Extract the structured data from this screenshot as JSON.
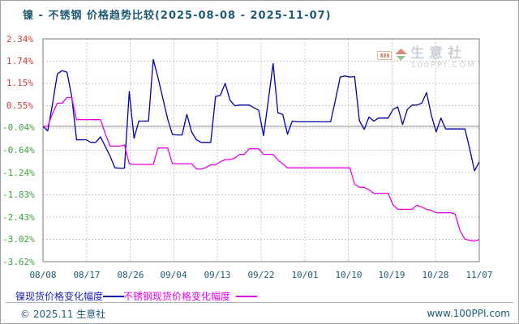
{
  "title": "镍 - 不锈钢 价格趋势比较(2025-08-08 - 2025-11-07)",
  "watermark": {
    "name": "生意社",
    "site": "100PPI.COM"
  },
  "legend": [
    {
      "label": "镍现货价格变化幅度",
      "color": "#2020C0"
    },
    {
      "label": "不锈钢现货价格变化幅度",
      "color": "#E800E8"
    }
  ],
  "footer": {
    "left": "© 2025.11 生意社",
    "right": "www.100PPI.com"
  },
  "colors": {
    "title": "#1E5A73",
    "tick": "#1E5A73",
    "axis_positive": "#CC3C3C",
    "axis_negative": "#3DA23D",
    "grid": "#C9C9C9",
    "zero_line": "#8C8C8C",
    "plot_border": "#7A7A7A"
  },
  "chart_data": {
    "type": "line",
    "title": "镍 - 不锈钢 价格趋势比较(2025-08-08 - 2025-11-07)",
    "date_range": [
      "2025-08-08",
      "2025-11-07"
    ],
    "x_tick_labels": [
      "08/08",
      "08/17",
      "08/26",
      "09/04",
      "09/13",
      "09/22",
      "10/01",
      "10/10",
      "10/19",
      "10/28",
      "11/07"
    ],
    "y_ticks": [
      {
        "label": "2.34%",
        "value": 2.34
      },
      {
        "label": "1.74%",
        "value": 1.74
      },
      {
        "label": "1.15%",
        "value": 1.15
      },
      {
        "label": "0.55%",
        "value": 0.55
      },
      {
        "label": "-0.04%",
        "value": -0.04
      },
      {
        "label": "-0.64%",
        "value": -0.64
      },
      {
        "label": "-1.24%",
        "value": -1.24
      },
      {
        "label": "-1.83%",
        "value": -1.83
      },
      {
        "label": "-2.43%",
        "value": -2.43
      },
      {
        "label": "-3.02%",
        "value": -3.02
      },
      {
        "label": "-3.62%",
        "value": -3.62
      }
    ],
    "ylim": [
      -3.62,
      2.34
    ],
    "grid": true,
    "zero_line": 0,
    "unit": "%",
    "series": [
      {
        "name": "镍现货价格变化幅度",
        "color": "#0000A8",
        "values": [
          0.0,
          -0.12,
          0.6,
          1.4,
          1.49,
          1.45,
          0.79,
          -0.36,
          -0.36,
          -0.36,
          -0.43,
          -0.43,
          -0.28,
          -0.54,
          -0.8,
          -1.11,
          -1.12,
          -1.12,
          0.93,
          -0.32,
          0.14,
          0.14,
          0.14,
          1.79,
          1.3,
          0.75,
          0.2,
          -0.22,
          -0.23,
          -0.23,
          0.32,
          -0.15,
          -0.36,
          -0.43,
          -0.43,
          -0.43,
          0.8,
          0.83,
          1.15,
          0.7,
          0.55,
          0.57,
          0.57,
          0.57,
          0.5,
          0.43,
          -0.25,
          0.7,
          1.68,
          0.36,
          0.32,
          -0.21,
          0.14,
          0.12,
          0.12,
          0.12,
          0.12,
          0.12,
          0.12,
          0.12,
          0.12,
          0.7,
          1.32,
          1.35,
          1.32,
          1.33,
          0.15,
          -0.08,
          0.25,
          0.14,
          0.22,
          0.22,
          0.22,
          0.45,
          0.52,
          0.05,
          0.45,
          0.57,
          0.57,
          0.62,
          0.9,
          0.3,
          -0.15,
          0.22,
          -0.07,
          -0.07,
          -0.07,
          -0.07,
          -0.07,
          -0.6,
          -1.19,
          -0.95
        ]
      },
      {
        "name": "不锈钢现货价格变化幅度",
        "color": "#E800E8",
        "values": [
          0.0,
          0.0,
          0.35,
          0.62,
          0.62,
          0.77,
          0.77,
          0.18,
          0.18,
          0.18,
          0.18,
          0.18,
          0.18,
          -0.2,
          -0.53,
          -0.53,
          -0.53,
          -0.5,
          -1.0,
          -1.02,
          -1.02,
          -1.02,
          -1.02,
          -1.02,
          -0.58,
          -0.58,
          -0.58,
          -1.0,
          -1.0,
          -1.0,
          -1.0,
          -1.0,
          -1.14,
          -1.14,
          -1.1,
          -1.03,
          -1.03,
          -0.95,
          -0.89,
          -0.89,
          -0.85,
          -0.75,
          -0.75,
          -0.6,
          -0.6,
          -0.6,
          -0.75,
          -0.75,
          -0.75,
          -0.9,
          -1.0,
          -1.11,
          -1.11,
          -1.11,
          -1.11,
          -1.11,
          -1.11,
          -1.11,
          -1.11,
          -1.11,
          -1.11,
          -1.11,
          -1.11,
          -1.11,
          -1.11,
          -1.55,
          -1.63,
          -1.63,
          -1.7,
          -1.79,
          -1.79,
          -1.79,
          -1.79,
          -2.1,
          -2.22,
          -2.22,
          -2.22,
          -2.22,
          -2.11,
          -2.16,
          -2.22,
          -2.25,
          -2.31,
          -2.31,
          -2.31,
          -2.31,
          -2.35,
          -2.8,
          -3.02,
          -3.05,
          -3.07,
          -3.03
        ]
      }
    ],
    "legend_position": "bottom"
  }
}
